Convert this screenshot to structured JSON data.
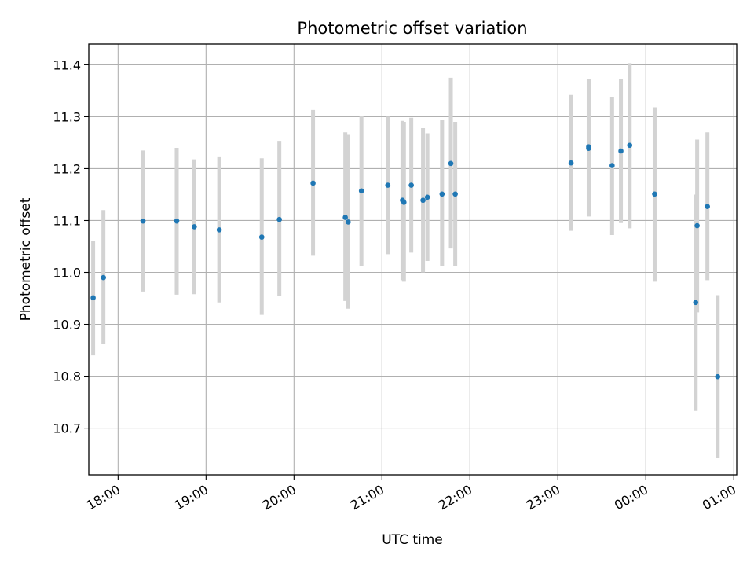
{
  "chart_data": {
    "type": "scatter",
    "title": "Photometric offset variation",
    "xlabel": "UTC time",
    "ylabel": "Photometric offset",
    "x_axis_type": "time",
    "xlim": [
      "17:40",
      "01:02"
    ],
    "ylim": [
      10.61,
      11.44
    ],
    "grid": true,
    "xticks": [
      "18:00",
      "19:00",
      "20:00",
      "21:00",
      "22:00",
      "23:00",
      "00:00",
      "01:00"
    ],
    "yticks": [
      "10.7",
      "10.8",
      "10.9",
      "11.0",
      "11.1",
      "11.2",
      "11.3",
      "11.4"
    ],
    "point_color": "#1f77b4",
    "errorbar_color": "#d3d3d3",
    "points": [
      {
        "x": "17:43",
        "y": 10.951,
        "ylow": 10.84,
        "yhigh": 11.06
      },
      {
        "x": "17:50",
        "y": 10.99,
        "ylow": 10.862,
        "yhigh": 11.12
      },
      {
        "x": "18:17",
        "y": 11.099,
        "ylow": 10.963,
        "yhigh": 11.235
      },
      {
        "x": "18:40",
        "y": 11.099,
        "ylow": 10.957,
        "yhigh": 11.24
      },
      {
        "x": "18:52",
        "y": 11.088,
        "ylow": 10.958,
        "yhigh": 11.218
      },
      {
        "x": "19:09",
        "y": 11.082,
        "ylow": 10.942,
        "yhigh": 11.222
      },
      {
        "x": "19:38",
        "y": 11.068,
        "ylow": 10.918,
        "yhigh": 11.22
      },
      {
        "x": "19:50",
        "y": 11.102,
        "ylow": 10.954,
        "yhigh": 11.252
      },
      {
        "x": "20:13",
        "y": 11.172,
        "ylow": 11.032,
        "yhigh": 11.313
      },
      {
        "x": "20:35",
        "y": 11.106,
        "ylow": 10.945,
        "yhigh": 11.27
      },
      {
        "x": "20:37",
        "y": 11.097,
        "ylow": 10.93,
        "yhigh": 11.265
      },
      {
        "x": "20:46",
        "y": 11.157,
        "ylow": 11.012,
        "yhigh": 11.302
      },
      {
        "x": "21:04",
        "y": 11.168,
        "ylow": 11.035,
        "yhigh": 11.3
      },
      {
        "x": "21:14",
        "y": 11.139,
        "ylow": 10.985,
        "yhigh": 11.292
      },
      {
        "x": "21:15",
        "y": 11.135,
        "ylow": 10.982,
        "yhigh": 11.29
      },
      {
        "x": "21:20",
        "y": 11.168,
        "ylow": 11.038,
        "yhigh": 11.298
      },
      {
        "x": "21:28",
        "y": 11.139,
        "ylow": 11.0,
        "yhigh": 11.278
      },
      {
        "x": "21:31",
        "y": 11.145,
        "ylow": 11.022,
        "yhigh": 11.268
      },
      {
        "x": "21:41",
        "y": 11.151,
        "ylow": 11.012,
        "yhigh": 11.293
      },
      {
        "x": "21:47",
        "y": 11.21,
        "ylow": 11.046,
        "yhigh": 11.375
      },
      {
        "x": "21:50",
        "y": 11.151,
        "ylow": 11.012,
        "yhigh": 11.29
      },
      {
        "x": "23:09",
        "y": 11.211,
        "ylow": 11.08,
        "yhigh": 11.342
      },
      {
        "x": "23:21",
        "y": 11.242,
        "ylow": 11.108,
        "yhigh": 11.373
      },
      {
        "x": "23:21",
        "y": 11.239,
        "ylow": 11.108,
        "yhigh": 11.37
      },
      {
        "x": "23:37",
        "y": 11.206,
        "ylow": 11.072,
        "yhigh": 11.338
      },
      {
        "x": "23:43",
        "y": 11.234,
        "ylow": 11.095,
        "yhigh": 11.373
      },
      {
        "x": "23:49",
        "y": 11.245,
        "ylow": 11.085,
        "yhigh": 11.403
      },
      {
        "x": "00:06",
        "y": 11.151,
        "ylow": 10.982,
        "yhigh": 11.318
      },
      {
        "x": "00:34",
        "y": 10.942,
        "ylow": 10.733,
        "yhigh": 11.15
      },
      {
        "x": "00:35",
        "y": 11.09,
        "ylow": 10.923,
        "yhigh": 11.256
      },
      {
        "x": "00:42",
        "y": 11.127,
        "ylow": 10.985,
        "yhigh": 11.27
      },
      {
        "x": "00:49",
        "y": 10.799,
        "ylow": 10.642,
        "yhigh": 10.956
      }
    ]
  }
}
